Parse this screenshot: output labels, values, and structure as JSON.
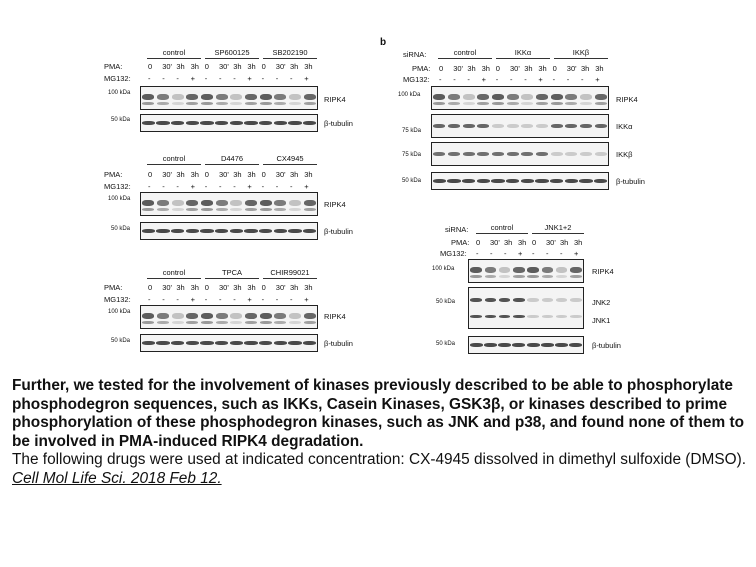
{
  "panel_a": {
    "blocks": [
      {
        "groups": [
          "control",
          "SP600125",
          "SB202190"
        ],
        "pma_label": "PMA:",
        "pma_values": [
          "0",
          "30'",
          "3h",
          "3h",
          "0",
          "30'",
          "3h",
          "3h",
          "0",
          "30'",
          "3h",
          "3h"
        ],
        "mg_label": "MG132:",
        "mg_values": [
          "-",
          "-",
          "-",
          "+",
          "-",
          "-",
          "-",
          "+",
          "-",
          "-",
          "-",
          "+"
        ],
        "marker_top": "100 kDa",
        "marker_bottom": "50 kDa",
        "blot_top_label": "RIPK4",
        "blot_bottom_label": "β-tubulin"
      },
      {
        "groups": [
          "control",
          "D4476",
          "CX4945"
        ],
        "pma_label": "PMA:",
        "pma_values": [
          "0",
          "30'",
          "3h",
          "3h",
          "0",
          "30'",
          "3h",
          "3h",
          "0",
          "30'",
          "3h",
          "3h"
        ],
        "mg_label": "MG132:",
        "mg_values": [
          "-",
          "-",
          "-",
          "+",
          "-",
          "-",
          "-",
          "+",
          "-",
          "-",
          "-",
          "+"
        ],
        "marker_top": "100 kDa",
        "marker_bottom": "50 kDa",
        "blot_top_label": "RIPK4",
        "blot_bottom_label": "β-tubulin"
      },
      {
        "groups": [
          "control",
          "TPCA",
          "CHIR99021"
        ],
        "pma_label": "PMA:",
        "pma_values": [
          "0",
          "30'",
          "3h",
          "3h",
          "0",
          "30'",
          "3h",
          "3h",
          "0",
          "30'",
          "3h",
          "3h"
        ],
        "mg_label": "MG132:",
        "mg_values": [
          "-",
          "-",
          "-",
          "+",
          "-",
          "-",
          "-",
          "+",
          "-",
          "-",
          "-",
          "+"
        ],
        "marker_top": "100 kDa",
        "marker_bottom": "50 kDa",
        "blot_top_label": "RIPK4",
        "blot_bottom_label": "β-tubulin"
      }
    ]
  },
  "panel_b": {
    "letter": "b",
    "block1": {
      "sirna_label": "siRNA:",
      "groups": [
        "control",
        "IKKα",
        "IKKβ"
      ],
      "pma_label": "PMA:",
      "pma_values": [
        "0",
        "30'",
        "3h",
        "3h",
        "0",
        "30'",
        "3h",
        "3h",
        "0",
        "30'",
        "3h",
        "3h"
      ],
      "mg_label": "MG132:",
      "mg_values": [
        "-",
        "-",
        "-",
        "+",
        "-",
        "-",
        "-",
        "+",
        "-",
        "-",
        "-",
        "+"
      ],
      "markers": [
        "100 kDa",
        "75 kDa",
        "75 kDa",
        "50 kDa"
      ],
      "labels": [
        "RIPK4",
        "IKKα",
        "IKKβ",
        "β-tubulin"
      ]
    },
    "block2": {
      "sirna_label": "siRNA:",
      "groups": [
        "control",
        "JNK1+2"
      ],
      "pma_label": "PMA:",
      "pma_values": [
        "0",
        "30'",
        "3h",
        "3h",
        "0",
        "30'",
        "3h",
        "3h"
      ],
      "mg_label": "MG132:",
      "mg_values": [
        "-",
        "-",
        "-",
        "+",
        "-",
        "-",
        "-",
        "+"
      ],
      "markers": [
        "100 kDa",
        "50 kDa",
        "50 kDa"
      ],
      "labels": [
        "RIPK4",
        "JNK2",
        "JNK1",
        "β-tubulin"
      ]
    }
  },
  "caption": {
    "bold_text": "Further, we tested for the involvement of kinases previously described to be able to phosphorylate phosphodegron sequences, such as IKKs, Casein Kinases, GSK3β, or kinases described to prime phosphorylation of these phosphodegron kinases, such as JNK and p38, and found none of them to be involved in PMA-induced RIPK4 degradation.",
    "normal_text": "The following drugs were used at indicated concentration: CX-4945 dissolved in dimethyl sulfoxide (DMSO).",
    "reference": "Cell Mol Life Sci. 2018 Feb 12."
  }
}
